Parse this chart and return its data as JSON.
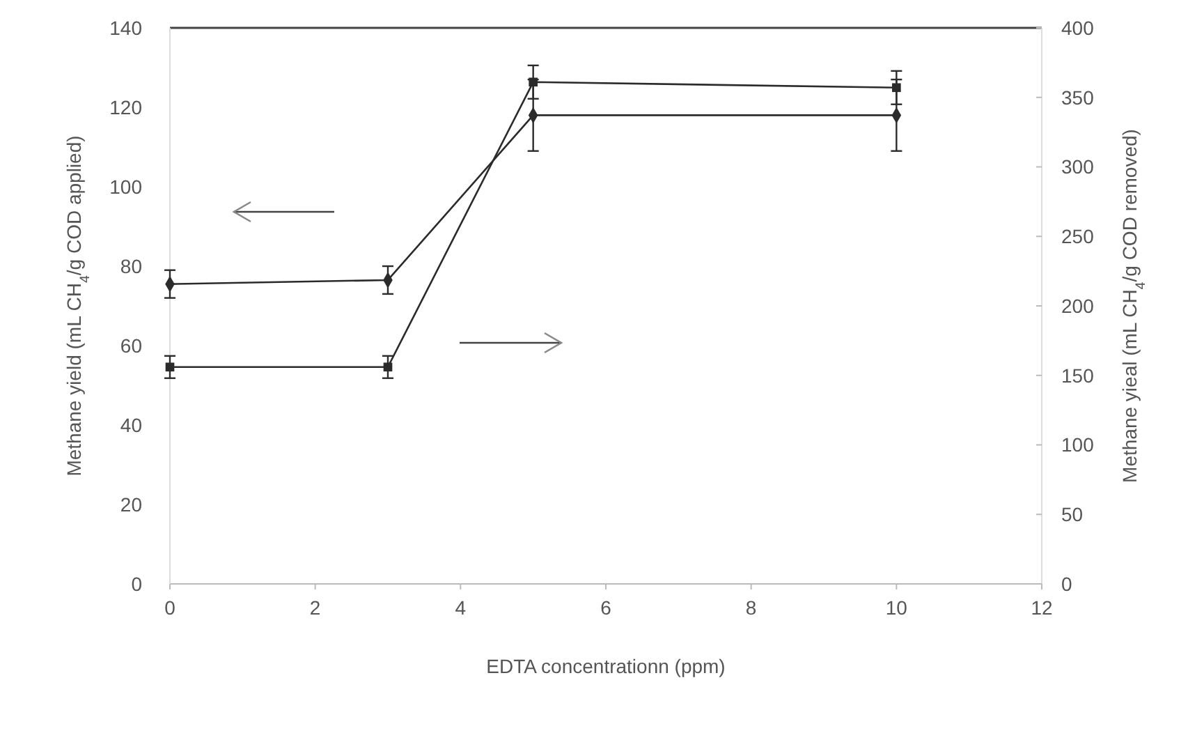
{
  "chart_data": {
    "type": "line",
    "xlabel": "EDTA concentrationn (ppm)",
    "ylabel": "Methane yield (mL CH$_{4}$/g COD applied)",
    "y2label": "Methane yieal (mL CH$_{4}$/g COD removed)",
    "x": [
      0,
      3,
      5,
      10
    ],
    "series": [
      {
        "color": "#2b2b2b",
        "marker": "diamond",
        "values": [
          75.5,
          76.5,
          118,
          118
        ],
        "errors": [
          3.5,
          3.5,
          9,
          9
        ]
      },
      {
        "color": "#2b2b2b",
        "marker": "square",
        "axis": "y2",
        "values": [
          156,
          156,
          361,
          357
        ],
        "errors": [
          8,
          8,
          12,
          12
        ]
      }
    ],
    "xlim": [
      0,
      12
    ],
    "xticks": [
      0,
      2,
      4,
      6,
      8,
      10,
      12
    ],
    "ylim": [
      0,
      140
    ],
    "yticks": [
      0,
      20,
      40,
      60,
      80,
      100,
      120,
      140
    ],
    "y2lim": [
      0,
      400
    ],
    "y2ticks": [
      0,
      50,
      100,
      150,
      200,
      250,
      300,
      350,
      400
    ]
  }
}
